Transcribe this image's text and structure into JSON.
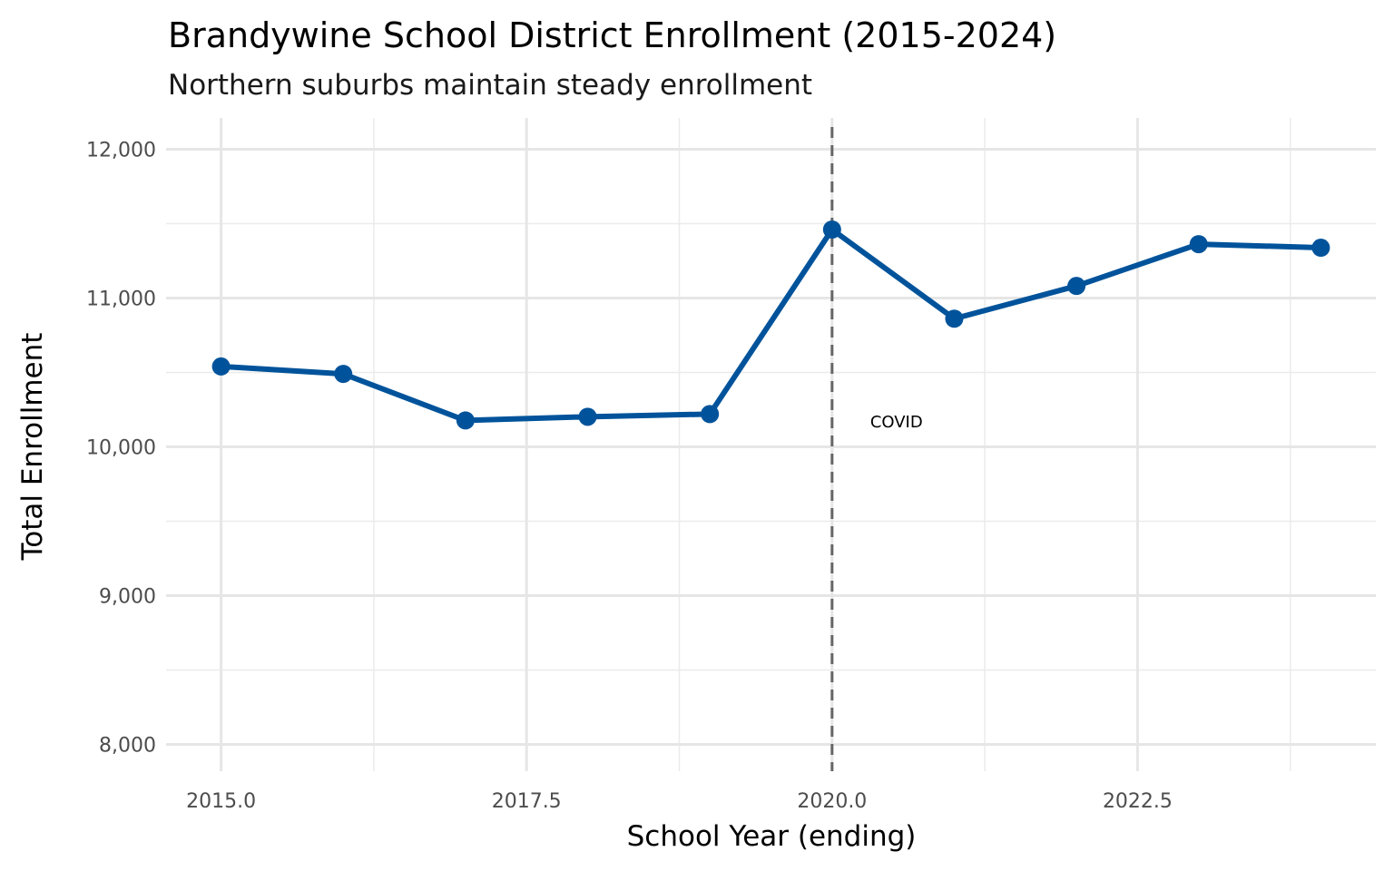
{
  "chart_data": {
    "type": "line",
    "title": "Brandywine School District Enrollment (2015-2024)",
    "subtitle": "Northern suburbs maintain steady enrollment",
    "xlabel": "School Year (ending)",
    "ylabel": "Total Enrollment",
    "x": [
      2015,
      2016,
      2017,
      2018,
      2019,
      2020,
      2021,
      2022,
      2023,
      2024
    ],
    "values": [
      10540,
      10490,
      10177,
      10202,
      10220,
      11460,
      10861,
      11081,
      11362,
      11338
    ],
    "xlim": [
      2014.55,
      2024.45
    ],
    "ylim": [
      7820,
      12210
    ],
    "xticks": [
      2015.0,
      2017.5,
      2020.0,
      2022.5
    ],
    "xtick_labels": [
      "2015.0",
      "2017.5",
      "2020.0",
      "2022.5"
    ],
    "yticks": [
      8000,
      9000,
      10000,
      11000,
      12000
    ],
    "ytick_labels": [
      "8,000",
      "9,000",
      "10,000",
      "11,000",
      "12,000"
    ],
    "grid": true,
    "line_color": "#00539b",
    "annotation": {
      "x": 2020,
      "label": "COVID",
      "line_color": "#666666",
      "line_style": "dashed"
    }
  }
}
